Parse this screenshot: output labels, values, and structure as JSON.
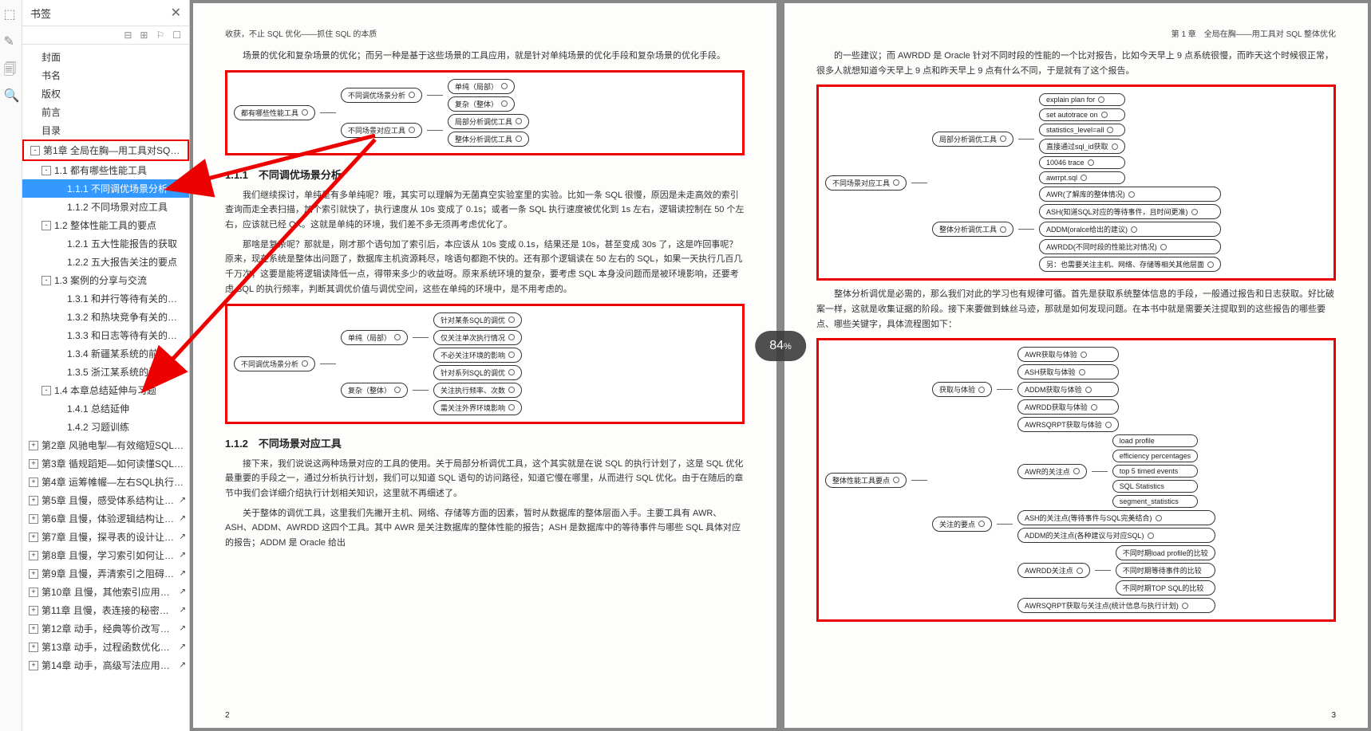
{
  "panel": {
    "title": "书签",
    "tools": [
      "⊟",
      "⊞",
      "⚐",
      "☐"
    ]
  },
  "tree": [
    {
      "label": "封面",
      "indent": 0,
      "toggle": null
    },
    {
      "label": "书名",
      "indent": 0,
      "toggle": null
    },
    {
      "label": "版权",
      "indent": 0,
      "toggle": null
    },
    {
      "label": "前言",
      "indent": 0,
      "toggle": null
    },
    {
      "label": "目录",
      "indent": 0,
      "toggle": null
    },
    {
      "label": "第1章  全局在胸—用工具对SQL整体优化",
      "indent": 0,
      "toggle": "-",
      "boxed": true
    },
    {
      "label": "1.1 都有哪些性能工具",
      "indent": 1,
      "toggle": "-"
    },
    {
      "label": "1.1.1 不同调优场景分析",
      "indent": 2,
      "toggle": null,
      "selected": true
    },
    {
      "label": "1.1.2 不同场景对应工具",
      "indent": 2,
      "toggle": null
    },
    {
      "label": "1.2 整体性能工具的要点",
      "indent": 1,
      "toggle": "-"
    },
    {
      "label": "1.2.1 五大性能报告的获取",
      "indent": 2,
      "toggle": null
    },
    {
      "label": "1.2.2 五大报告关注的要点",
      "indent": 2,
      "toggle": null
    },
    {
      "label": "1.3 案例的分享与交流",
      "indent": 1,
      "toggle": "-"
    },
    {
      "label": "1.3.1 和并行等待有关的案例",
      "indent": 2,
      "toggle": null
    },
    {
      "label": "1.3.2 和热块竞争有关的案例",
      "indent": 2,
      "toggle": null
    },
    {
      "label": "1.3.3 和日志等待有关的案例",
      "indent": 2,
      "toggle": null
    },
    {
      "label": "1.3.4 新疆某系统的前台优化",
      "indent": 2,
      "toggle": null
    },
    {
      "label": "1.3.5 浙江某系统的调优案例",
      "indent": 2,
      "toggle": null
    },
    {
      "label": "1.4 本章总结延伸与习题",
      "indent": 1,
      "toggle": "-"
    },
    {
      "label": "1.4.1 总结延伸",
      "indent": 2,
      "toggle": null
    },
    {
      "label": "1.4.2 习题训练",
      "indent": 2,
      "toggle": null
    },
    {
      "label": "第2章 风驰电掣—有效缩短SQL优化过程",
      "indent": 0,
      "toggle": "+"
    },
    {
      "label": "第3章 循规蹈矩—如何读懂SQL执行计划",
      "indent": 0,
      "toggle": "+"
    },
    {
      "label": "第4章 运筹帷幄—左右SQL执行计划妙招",
      "indent": 0,
      "toggle": "+"
    },
    {
      "label": "第5章 且慢，感受体系结构让SQL飞",
      "indent": 0,
      "toggle": "+",
      "popup": true
    },
    {
      "label": "第6章 且慢，体验逻辑结构让SQL飞",
      "indent": 0,
      "toggle": "+",
      "popup": true
    },
    {
      "label": "第7章 且慢，探寻表的设计让SQL飞",
      "indent": 0,
      "toggle": "+",
      "popup": true
    },
    {
      "label": "第8章 且慢，学习索引如何让SQL飞",
      "indent": 0,
      "toggle": "+",
      "popup": true
    },
    {
      "label": "第9章 且慢，弄清索引之阻碍让SQL飞",
      "indent": 0,
      "toggle": "+",
      "popup": true
    },
    {
      "label": "第10章 且慢，其他索引应用让SQL飞",
      "indent": 0,
      "toggle": "+",
      "popup": true
    },
    {
      "label": "第11章 且慢，表连接的秘密让SQL飞",
      "indent": 0,
      "toggle": "+",
      "popup": true
    },
    {
      "label": "第12章 动手，经典等价改写让SQL飞",
      "indent": 0,
      "toggle": "+",
      "popup": true
    },
    {
      "label": "第13章 动手，过程函数优化让SQL飞",
      "indent": 0,
      "toggle": "+",
      "popup": true
    },
    {
      "label": "第14章 动手，高级写法应用让SQL飞",
      "indent": 0,
      "toggle": "+",
      "popup": true
    }
  ],
  "zoom": {
    "value": "84",
    "suffix": "%"
  },
  "leftPage": {
    "header": "收获，不止 SQL 优化——抓住 SQL 的本质",
    "intro": "场景的优化和复杂场景的优化；而另一种是基于这些场景的工具应用，就是针对单纯场景的优化手段和复杂场景的优化手段。",
    "sec111": "1.1.1　不同调优场景分析",
    "p1": "我们继续探讨，单纯是有多单纯呢？哦，其实可以理解为无菌真空实验室里的实验。比如一条 SQL 很慢，原因是未走高效的索引查询而走全表扫描，加个索引就快了，执行速度从 10s 变成了 0.1s；或者一条 SQL 执行速度被优化到 1s 左右，逻辑读控制在 50 个左右，应该就已经 OK。这就是单纯的环境，我们差不多无须再考虑优化了。",
    "p2": "那啥是复杂呢？那就是，刚才那个语句加了索引后，本应该从 10s 变成 0.1s，结果还是 10s，甚至变成 30s 了，这是咋回事呢？原来，现在系统是整体出问题了，数据库主机资源耗尽，啥语句都跑不快的。还有那个逻辑读在 50 左右的 SQL，如果一天执行几百几千万次，这要是能将逻辑读降低一点，得带来多少的收益呀。原来系统环境的复杂，要考虑 SQL 本身没问题而是被环境影响，还要考虑 SQL 的执行频率，判断其调优价值与调优空间，这些在单纯的环境中，是不用考虑的。",
    "sec112": "1.1.2　不同场景对应工具",
    "p3": "接下来，我们说说这两种场景对应的工具的使用。关于局部分析调优工具，这个其实就是在说 SQL 的执行计划了，这是 SQL 优化最重要的手段之一，通过分析执行计划，我们可以知道 SQL 语句的访问路径，知道它慢在哪里，从而进行 SQL 优化。由于在随后的章节中我们会详细介绍执行计划相关知识，这里就不再细述了。",
    "p4": "关于整体的调优工具，这里我们先撇开主机、网络、存储等方面的因素，暂时从数据库的整体层面入手。主要工具有 AWR、ASH、ADDM、AWRDD 这四个工具。其中 AWR 是关注数据库的整体性能的报告；ASH 是数据库中的等待事件与哪些 SQL 具体对应的报告；ADDM 是 Oracle 给出",
    "pageNum": "2",
    "diagram1": {
      "root": "都有哪些性能工具",
      "branches": [
        {
          "label": "不同调优场景分析",
          "children": [
            "单纯（局部）",
            "复杂（整体）"
          ]
        },
        {
          "label": "不同场景对应工具",
          "children": [
            "局部分析调优工具",
            "整体分析调优工具"
          ]
        }
      ]
    },
    "diagram2": {
      "root": "不同调优场景分析",
      "branches": [
        {
          "label": "单纯（局部）",
          "children": [
            "针对某条SQL的调优",
            "仅关注单次执行情况",
            "不必关注环境的影响"
          ]
        },
        {
          "label": "复杂（整体）",
          "children": [
            "针对系列SQL的调优",
            "关注执行频率、次数",
            "需关注外界环境影响"
          ]
        }
      ]
    }
  },
  "rightPage": {
    "header": "第 1 章　全局在胸——用工具对 SQL 整体优化",
    "intro": "的一些建议；而 AWRDD 是 Oracle 针对不同时段的性能的一个比对报告，比如今天早上 9 点系统很慢，而昨天这个时候很正常，很多人就想知道今天早上 9 点和昨天早上 9 点有什么不同，于是就有了这个报告。",
    "p1": "整体分析调优是必需的，那么我们对此的学习也有规律可循。首先是获取系统整体信息的手段，一般通过报告和日志获取。好比破案一样，这就是收集证据的阶段。接下来要做到蛛丝马迹，那就是如何发现问题。在本书中就是需要关注提取到的这些报告的哪些要点、哪些关键字，具体流程图如下：",
    "pageNum": "3",
    "diagram1": {
      "root": "不同场景对应工具",
      "branches": [
        {
          "label": "局部分析调优工具",
          "children": [
            "explain plan for",
            "set autotrace on",
            "statistics_level=all",
            "直接通过sql_id获取",
            "10046 trace",
            "awrrpt.sql"
          ]
        },
        {
          "label": "整体分析调优工具",
          "children": [
            "AWR(了解库的整体情况)",
            "ASH(知道SQL对应的等待事件，且时间更准)",
            "ADDM(oralce给出的建议)",
            "AWRDD(不同时段的性能比对情况)",
            "另：也需要关注主机、网络、存储等相关其他层面"
          ]
        }
      ]
    },
    "diagram2": {
      "root": "整体性能工具要点",
      "branches": [
        {
          "label": "获取与体验",
          "children": [
            "AWR获取与体验",
            "ASH获取与体验",
            "ADDM获取与体验",
            "AWRDD获取与体验",
            "AWRSQRPT获取与体验"
          ]
        },
        {
          "label": "关注的要点",
          "sub": [
            {
              "label": "AWR的关注点",
              "children": [
                "load profile",
                "efficiency percentages",
                "top 5 timed events",
                "SQL Statistics",
                "segment_statistics"
              ]
            },
            {
              "label": "ASH的关注点(等待事件与SQL完美结合)"
            },
            {
              "label": "ADDM的关注点(各种建议与对应SQL)"
            },
            {
              "label": "AWRDD关注点",
              "children": [
                "不同时期load profile的比较",
                "不同时期等待事件的比较",
                "不同时期TOP SQL的比较"
              ]
            },
            {
              "label": "AWRSQRPT获取与关注点(统计信息与执行计划)"
            }
          ]
        }
      ]
    }
  },
  "colors": {
    "highlight": "#e00",
    "select": "#3399ff"
  }
}
